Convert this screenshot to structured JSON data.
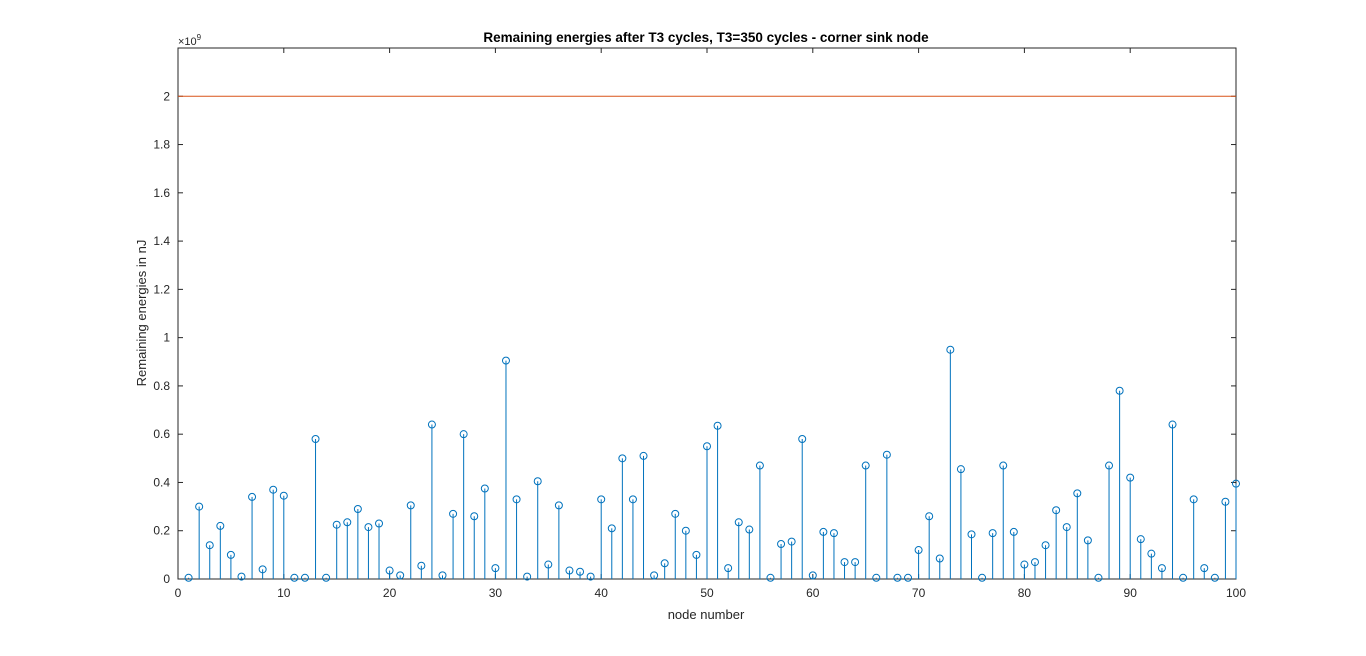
{
  "chart_data": {
    "type": "stem",
    "title": "Remaining energies after T3 cycles, T3=350 cycles - corner sink node",
    "xlabel": "node number",
    "ylabel": "Remaining energies in nJ",
    "y_exponent_label": "×10",
    "y_exponent_power": "9",
    "xlim": [
      0,
      100
    ],
    "ylim": [
      0,
      2.2
    ],
    "y_scale": 1000000000.0,
    "grid": false,
    "legend": "none",
    "xticks": [
      0,
      10,
      20,
      30,
      40,
      50,
      60,
      70,
      80,
      90,
      100
    ],
    "xtick_labels": [
      "0",
      "10",
      "20",
      "30",
      "40",
      "50",
      "60",
      "70",
      "80",
      "90",
      "100"
    ],
    "yticks": [
      0,
      0.2,
      0.4,
      0.6,
      0.8,
      1,
      1.2,
      1.4,
      1.6,
      1.8,
      2
    ],
    "ytick_labels": [
      "0",
      "0.2",
      "0.4",
      "0.6",
      "0.8",
      "1",
      "1.2",
      "1.4",
      "1.6",
      "1.8",
      "2"
    ],
    "colors": {
      "stem": "#0072BD",
      "reference_line": "#D95319",
      "axes": "#262626"
    },
    "reference_line": {
      "y": 2.0
    },
    "series": [
      {
        "x": [
          1,
          2,
          3,
          4,
          5,
          6,
          7,
          8,
          9,
          10,
          11,
          12,
          13,
          14,
          15,
          16,
          17,
          18,
          19,
          20,
          21,
          22,
          23,
          24,
          25,
          26,
          27,
          28,
          29,
          30,
          31,
          32,
          33,
          34,
          35,
          36,
          37,
          38,
          39,
          40,
          41,
          42,
          43,
          44,
          45,
          46,
          47,
          48,
          49,
          50,
          51,
          52,
          53,
          54,
          55,
          56,
          57,
          58,
          59,
          60,
          61,
          62,
          63,
          64,
          65,
          66,
          67,
          68,
          69,
          70,
          71,
          72,
          73,
          74,
          75,
          76,
          77,
          78,
          79,
          80,
          81,
          82,
          83,
          84,
          85,
          86,
          87,
          88,
          89,
          90,
          91,
          92,
          93,
          94,
          95,
          96,
          97,
          98,
          99,
          100
        ],
        "values": [
          0.005,
          0.3,
          0.14,
          0.22,
          0.1,
          0.01,
          0.34,
          0.04,
          0.37,
          0.345,
          0.005,
          0.005,
          0.58,
          0.005,
          0.225,
          0.235,
          0.29,
          0.215,
          0.23,
          0.035,
          0.015,
          0.305,
          0.055,
          0.64,
          0.015,
          0.27,
          0.6,
          0.26,
          0.375,
          0.045,
          0.905,
          0.33,
          0.01,
          0.405,
          0.06,
          0.305,
          0.035,
          0.03,
          0.01,
          0.33,
          0.21,
          0.5,
          0.33,
          0.51,
          0.015,
          0.065,
          0.27,
          0.2,
          0.1,
          0.55,
          0.635,
          0.045,
          0.235,
          0.205,
          0.47,
          0.005,
          0.145,
          0.155,
          0.58,
          0.015,
          0.195,
          0.19,
          0.07,
          0.07,
          0.47,
          0.005,
          0.515,
          0.005,
          0.005,
          0.12,
          0.26,
          0.085,
          0.95,
          0.455,
          0.185,
          0.005,
          0.19,
          0.47,
          0.195,
          0.06,
          0.07,
          0.14,
          0.285,
          0.215,
          0.355,
          0.16,
          0.005,
          0.47,
          0.78,
          0.42,
          0.165,
          0.105,
          0.045,
          0.64,
          0.005,
          0.33,
          0.045,
          0.005,
          0.32,
          0.395
        ]
      }
    ]
  }
}
